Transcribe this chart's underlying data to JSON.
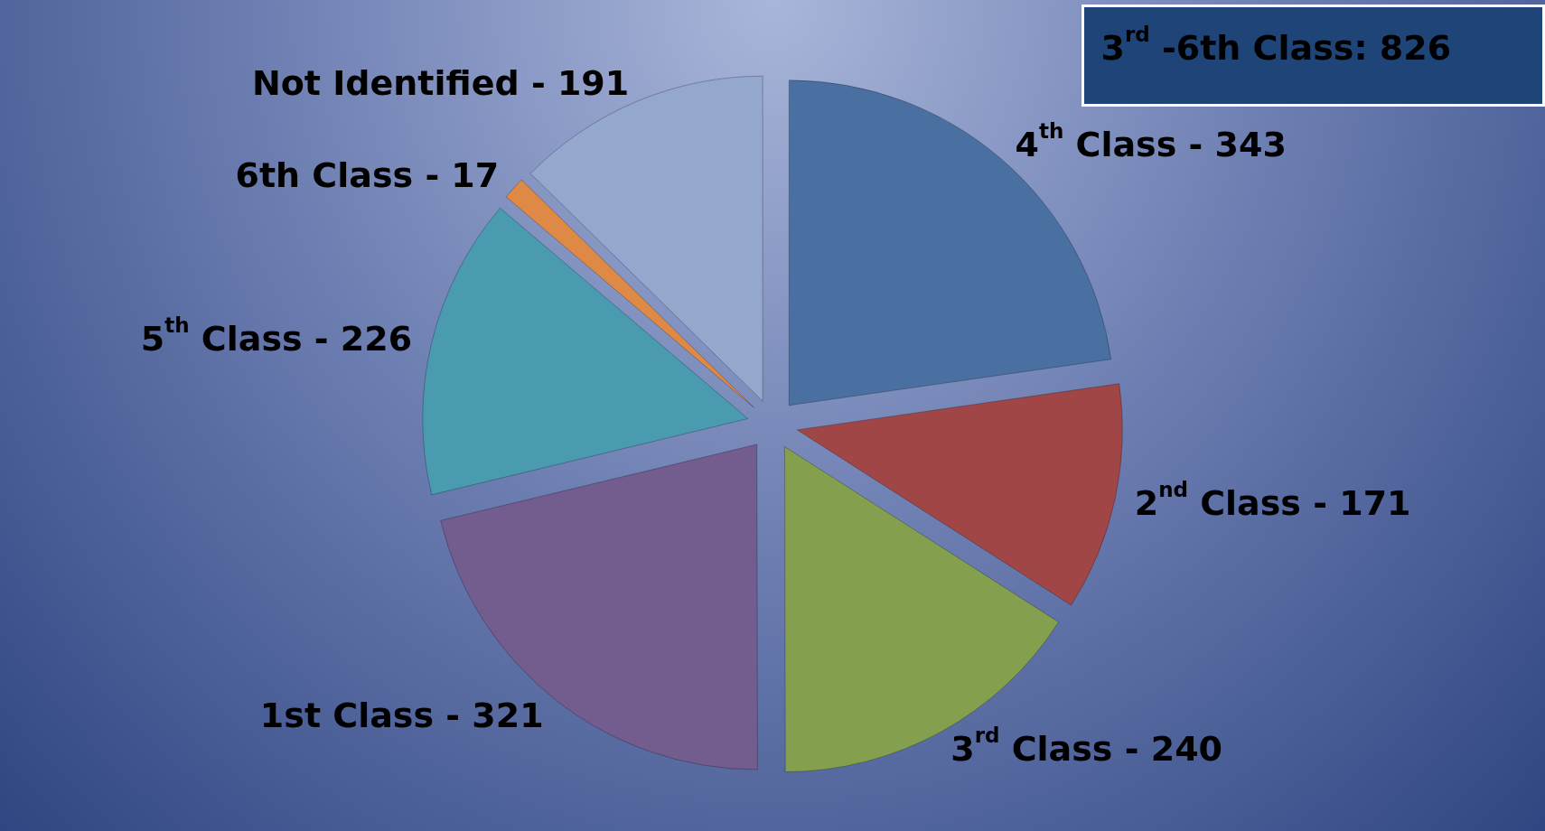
{
  "chart_data": {
    "type": "pie",
    "categories": [
      "4$^{th}$ Class -",
      "2$^{nd}$ Class -",
      "3$^{rd}$ Class -",
      "1st Class -",
      "5$^{th}$ Class -",
      "6th Class -",
      "Not Identified -"
    ],
    "values": [
      343,
      171,
      240,
      321,
      226,
      17,
      191
    ],
    "colors": [
      "#4a70a2",
      "#a14646",
      "#84a04e",
      "#735c8e",
      "#4a9bb0",
      "#de8a46",
      "#93a8cc"
    ],
    "data_labels": true,
    "annotations": [
      "3$^{rd}$ -6th Class: 826"
    ]
  }
}
